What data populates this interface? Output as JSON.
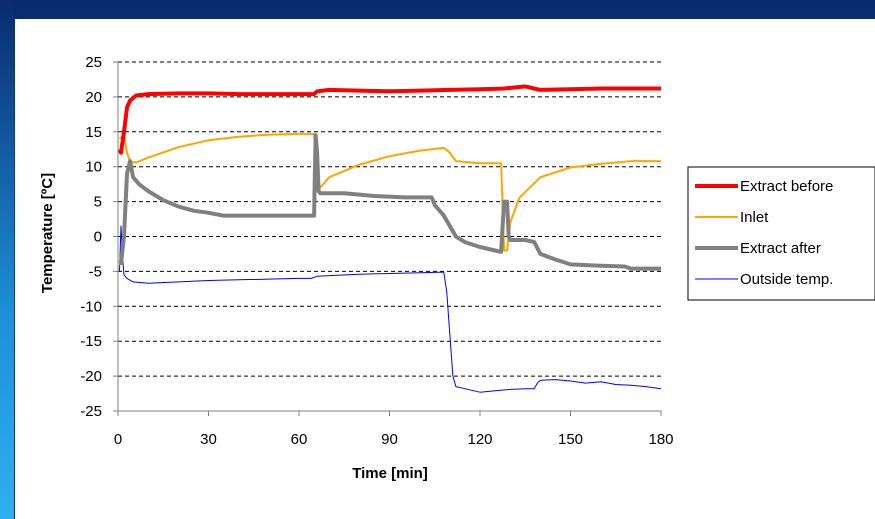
{
  "chart_data": {
    "type": "line",
    "xlabel": "Time [min]",
    "ylabel": "Temperature [ºC]",
    "xlim": [
      0,
      180
    ],
    "ylim": [
      -25,
      25
    ],
    "xticks": [
      0,
      30,
      60,
      90,
      120,
      150,
      180
    ],
    "yticks": [
      25,
      20,
      15,
      10,
      5,
      0,
      -5,
      -10,
      -15,
      -20,
      -25
    ],
    "grid": "horizontal dashed",
    "legend_position": "right",
    "series": [
      {
        "name": "Extract before",
        "color": "#ff0000",
        "width": 4,
        "points": [
          [
            0.5,
            12.5
          ],
          [
            1,
            12
          ],
          [
            2,
            15
          ],
          [
            3,
            18.5
          ],
          [
            4,
            19.5
          ],
          [
            6,
            20.2
          ],
          [
            10,
            20.4
          ],
          [
            20,
            20.5
          ],
          [
            30,
            20.5
          ],
          [
            40,
            20.4
          ],
          [
            50,
            20.4
          ],
          [
            60,
            20.4
          ],
          [
            65,
            20.4
          ],
          [
            66,
            20.8
          ],
          [
            70,
            21
          ],
          [
            80,
            20.9
          ],
          [
            90,
            20.8
          ],
          [
            100,
            20.9
          ],
          [
            110,
            21
          ],
          [
            120,
            21.1
          ],
          [
            128,
            21.2
          ],
          [
            135,
            21.5
          ],
          [
            140,
            21
          ],
          [
            150,
            21.1
          ],
          [
            160,
            21.2
          ],
          [
            170,
            21.2
          ],
          [
            180,
            21.2
          ]
        ]
      },
      {
        "name": "Inlet",
        "color": "#ffa500",
        "width": 2,
        "points": [
          [
            0.5,
            14
          ],
          [
            2,
            14.5
          ],
          [
            3,
            12
          ],
          [
            4,
            10.7
          ],
          [
            6,
            10.6
          ],
          [
            10,
            11.3
          ],
          [
            20,
            12.8
          ],
          [
            30,
            13.8
          ],
          [
            40,
            14.3
          ],
          [
            50,
            14.6
          ],
          [
            60,
            14.7
          ],
          [
            65,
            14.7
          ],
          [
            65.5,
            11
          ],
          [
            66,
            7.5
          ],
          [
            67,
            7
          ],
          [
            70,
            8.5
          ],
          [
            80,
            10.3
          ],
          [
            90,
            11.5
          ],
          [
            100,
            12.3
          ],
          [
            108,
            12.7
          ],
          [
            110,
            12
          ],
          [
            112,
            10.8
          ],
          [
            120,
            10.5
          ],
          [
            127,
            10.5
          ],
          [
            128,
            -2
          ],
          [
            129,
            -2
          ],
          [
            130,
            2
          ],
          [
            133,
            5.5
          ],
          [
            140,
            8.5
          ],
          [
            150,
            9.9
          ],
          [
            160,
            10.4
          ],
          [
            170,
            10.8
          ],
          [
            180,
            10.8
          ]
        ]
      },
      {
        "name": "Extract after",
        "color": "#808080",
        "width": 4,
        "points": [
          [
            0.5,
            -3.8
          ],
          [
            1,
            -3.8
          ],
          [
            2,
            0
          ],
          [
            3,
            9
          ],
          [
            4,
            10.8
          ],
          [
            5,
            8.5
          ],
          [
            7,
            7.5
          ],
          [
            10,
            6.5
          ],
          [
            15,
            5.2
          ],
          [
            20,
            4.3
          ],
          [
            25,
            3.7
          ],
          [
            30,
            3.4
          ],
          [
            35,
            3
          ],
          [
            40,
            3
          ],
          [
            50,
            3
          ],
          [
            60,
            3
          ],
          [
            65,
            3
          ],
          [
            65.5,
            14.5
          ],
          [
            66,
            12
          ],
          [
            66.5,
            6.5
          ],
          [
            67,
            6.2
          ],
          [
            75,
            6.2
          ],
          [
            85,
            5.8
          ],
          [
            95,
            5.6
          ],
          [
            104,
            5.6
          ],
          [
            105,
            4.5
          ],
          [
            108,
            3
          ],
          [
            110,
            1.5
          ],
          [
            112,
            0
          ],
          [
            115,
            -0.8
          ],
          [
            120,
            -1.5
          ],
          [
            125,
            -2
          ],
          [
            127,
            -2.2
          ],
          [
            128,
            5
          ],
          [
            129,
            5
          ],
          [
            129.5,
            0
          ],
          [
            130,
            -0.5
          ],
          [
            135,
            -0.5
          ],
          [
            138,
            -0.8
          ],
          [
            140,
            -2.5
          ],
          [
            145,
            -3.3
          ],
          [
            150,
            -4
          ],
          [
            160,
            -4.2
          ],
          [
            168,
            -4.3
          ],
          [
            170,
            -4.6
          ],
          [
            180,
            -4.6
          ]
        ]
      },
      {
        "name": "Outside temp.",
        "color": "#0000ff",
        "width": 1,
        "points": [
          [
            0.5,
            -5
          ],
          [
            1,
            1.5
          ],
          [
            1.5,
            -3
          ],
          [
            2,
            -5.5
          ],
          [
            3,
            -6
          ],
          [
            5,
            -6.5
          ],
          [
            10,
            -6.7
          ],
          [
            20,
            -6.5
          ],
          [
            30,
            -6.3
          ],
          [
            40,
            -6.2
          ],
          [
            50,
            -6.1
          ],
          [
            60,
            -6
          ],
          [
            64,
            -6
          ],
          [
            66,
            -5.7
          ],
          [
            70,
            -5.6
          ],
          [
            80,
            -5.4
          ],
          [
            90,
            -5.3
          ],
          [
            100,
            -5.2
          ],
          [
            108,
            -5.1
          ],
          [
            109,
            -8
          ],
          [
            110,
            -14
          ],
          [
            111,
            -20
          ],
          [
            112,
            -21.5
          ],
          [
            115,
            -21.8
          ],
          [
            120,
            -22.3
          ],
          [
            125,
            -22.1
          ],
          [
            130,
            -21.9
          ],
          [
            135,
            -21.8
          ],
          [
            138,
            -21.8
          ],
          [
            139,
            -21
          ],
          [
            140,
            -20.6
          ],
          [
            145,
            -20.5
          ],
          [
            150,
            -20.7
          ],
          [
            155,
            -21
          ],
          [
            160,
            -20.8
          ],
          [
            165,
            -21.2
          ],
          [
            170,
            -21.3
          ],
          [
            175,
            -21.5
          ],
          [
            180,
            -21.8
          ]
        ]
      }
    ]
  }
}
